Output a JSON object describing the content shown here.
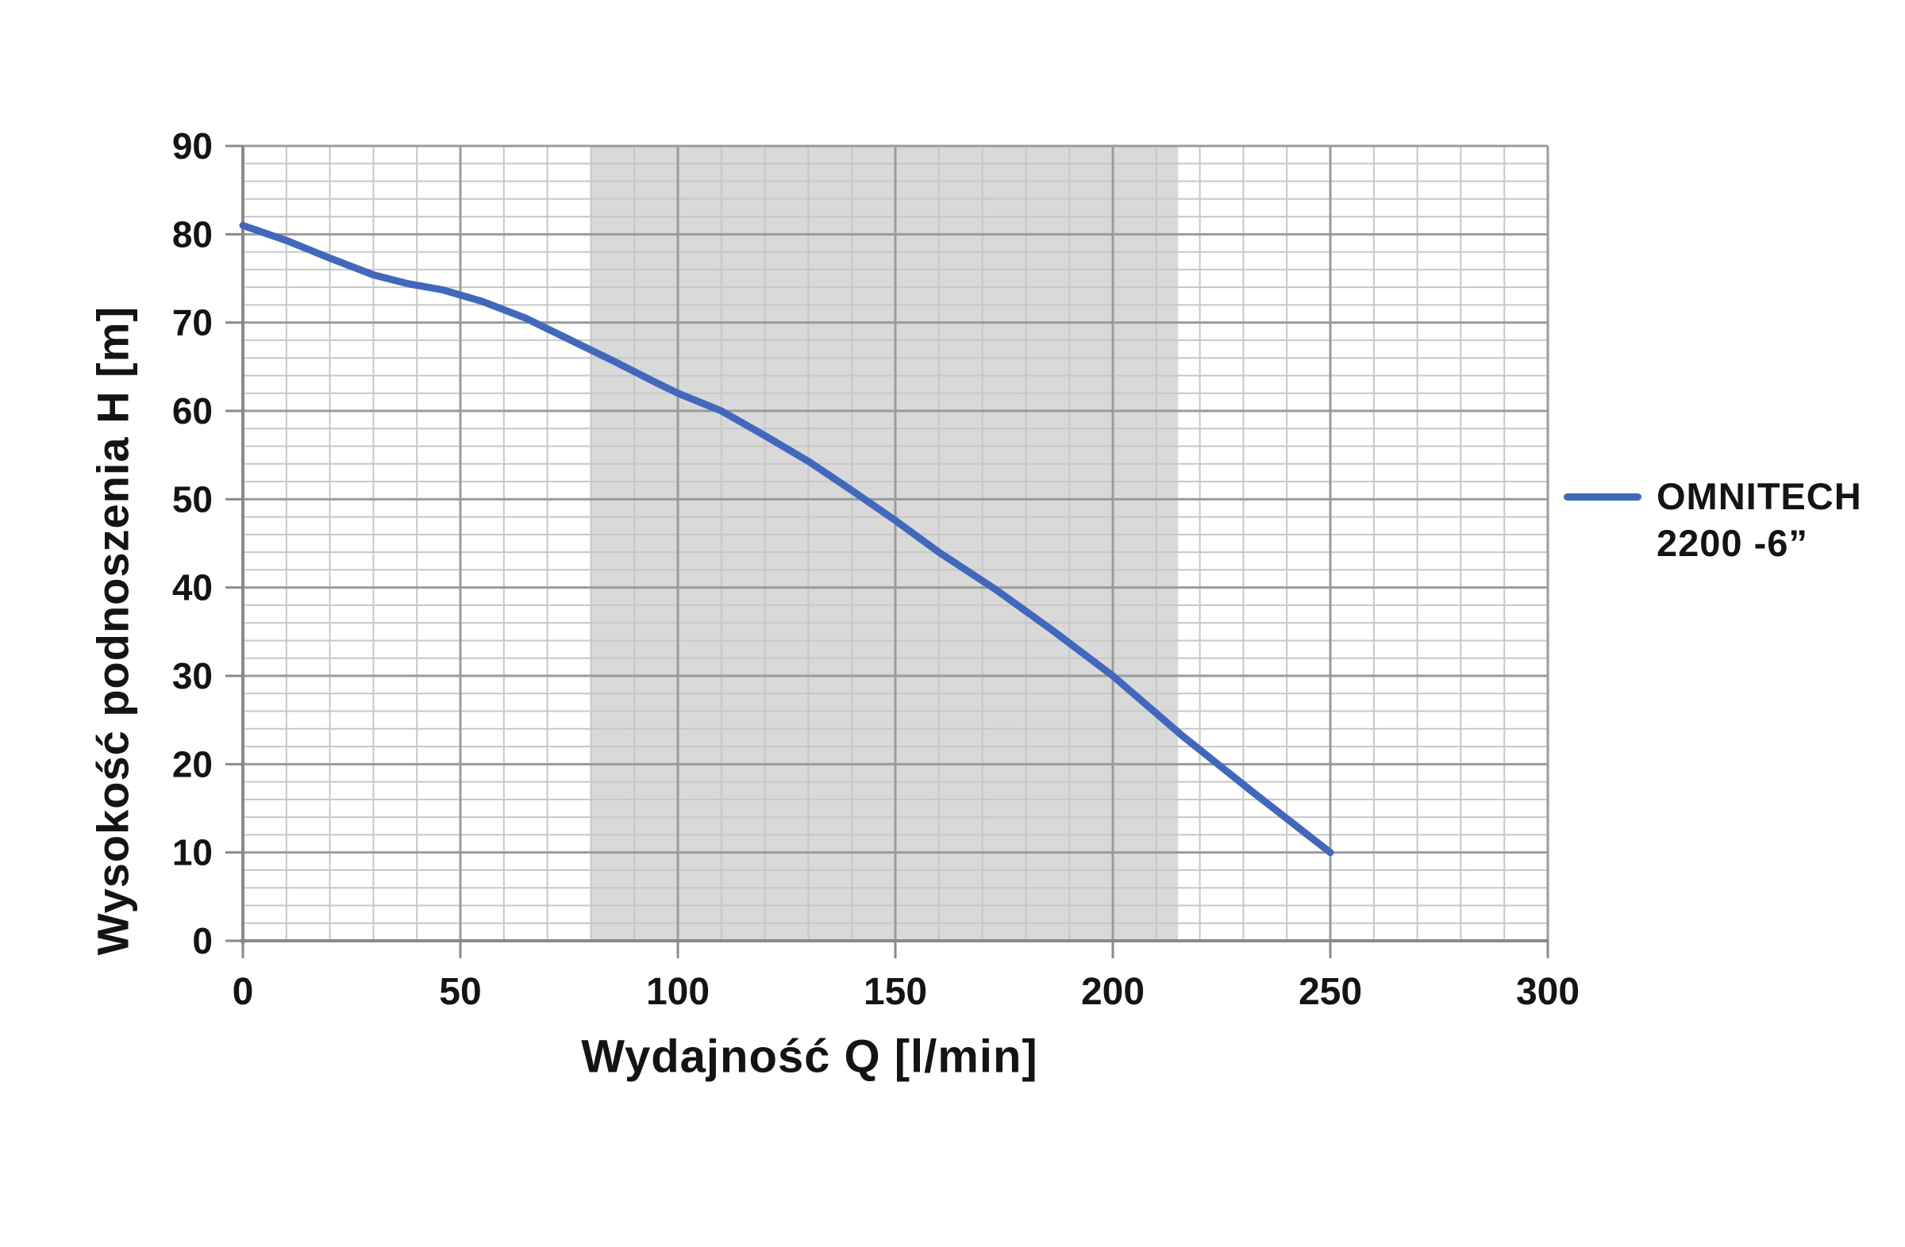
{
  "axes": {
    "x_title": "Wydajność Q [l/min]",
    "y_title": "Wysokość podnoszenia H [m]"
  },
  "legend": {
    "lines": [
      "OMNITECH",
      "2200 -6”"
    ]
  },
  "colors": {
    "series_blue": "#4068bc",
    "band_gray": "#d9d9d9",
    "minor_grid": "#c7c7c7",
    "major_grid": "#9b9b9b",
    "axis_line": "#8a8a8a",
    "text": "#141414"
  },
  "chart_data": {
    "type": "line",
    "title": "",
    "xlabel": "Wydajność Q [l/min]",
    "ylabel": "Wysokość podnoszenia H [m]",
    "xlim": [
      0,
      300
    ],
    "ylim": [
      0,
      90
    ],
    "x_ticks": [
      0,
      50,
      100,
      150,
      200,
      250,
      300
    ],
    "y_ticks": [
      0,
      10,
      20,
      30,
      40,
      50,
      60,
      70,
      80,
      90
    ],
    "x_minor_step": 10,
    "y_minor_step": 2,
    "grid": "major+minor",
    "legend_position": "right",
    "band": {
      "from_x": 80,
      "to_x": 215,
      "color": "#d9d9d9"
    },
    "series": [
      {
        "name": "OMNITECH 2200 -6”",
        "color": "#4068bc",
        "points": [
          [
            0,
            81
          ],
          [
            10,
            79.3
          ],
          [
            20,
            77.3
          ],
          [
            30,
            75.4
          ],
          [
            38,
            74.4
          ],
          [
            46,
            73.7
          ],
          [
            55,
            72.4
          ],
          [
            65,
            70.5
          ],
          [
            75,
            68.1
          ],
          [
            85,
            65.7
          ],
          [
            95,
            63.2
          ],
          [
            100,
            62
          ],
          [
            110,
            60
          ],
          [
            120,
            57.2
          ],
          [
            130,
            54.3
          ],
          [
            140,
            51
          ],
          [
            150,
            47.6
          ],
          [
            160,
            44
          ],
          [
            173,
            39.8
          ],
          [
            186,
            35.2
          ],
          [
            200,
            30
          ],
          [
            216,
            23.2
          ],
          [
            232,
            16.9
          ],
          [
            250,
            10
          ]
        ]
      }
    ]
  }
}
